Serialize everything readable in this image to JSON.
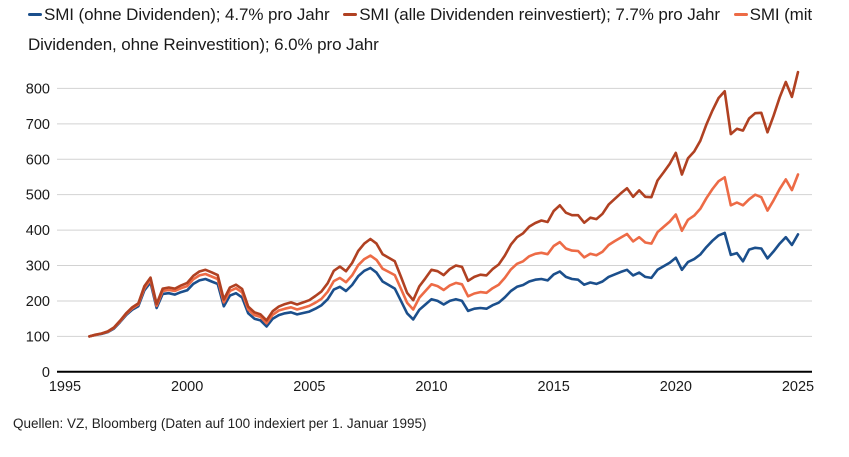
{
  "chart_data": {
    "type": "line",
    "title": "",
    "xlabel": "",
    "ylabel": "",
    "xlim": [
      1995,
      2025
    ],
    "ylim": [
      0,
      800
    ],
    "x_ticks": [
      1995,
      2000,
      2005,
      2010,
      2015,
      2020,
      2025
    ],
    "y_ticks": [
      0,
      100,
      200,
      300,
      400,
      500,
      600,
      700,
      800
    ],
    "grid": "horizontal",
    "legend_position": "top",
    "x_start": 1996.0,
    "x_step": 0.25,
    "series": [
      {
        "name": "SMI (ohne Dividenden); 4.7% pro Jahr",
        "color": "#1b4f8c",
        "values": [
          100,
          104,
          107,
          112,
          122,
          140,
          160,
          175,
          185,
          230,
          252,
          180,
          220,
          222,
          218,
          225,
          230,
          248,
          258,
          262,
          255,
          248,
          185,
          215,
          222,
          210,
          165,
          150,
          145,
          128,
          150,
          160,
          165,
          168,
          162,
          166,
          170,
          178,
          188,
          205,
          232,
          240,
          228,
          245,
          270,
          285,
          293,
          280,
          255,
          245,
          235,
          200,
          165,
          148,
          175,
          190,
          205,
          200,
          190,
          200,
          205,
          200,
          172,
          178,
          180,
          178,
          188,
          195,
          210,
          228,
          240,
          245,
          255,
          260,
          262,
          258,
          275,
          283,
          268,
          262,
          260,
          246,
          252,
          248,
          255,
          268,
          275,
          282,
          288,
          272,
          280,
          268,
          265,
          288,
          298,
          308,
          322,
          288,
          310,
          318,
          331,
          352,
          370,
          385,
          392,
          330,
          335,
          312,
          345,
          350,
          348,
          320,
          340,
          362,
          380,
          358,
          388
        ]
      },
      {
        "name": "SMI (alle Dividenden reinvestiert); 7.7% pro Jahr",
        "color": "#b04122",
        "values": [
          100,
          105,
          108,
          114,
          125,
          144,
          165,
          182,
          193,
          242,
          266,
          191,
          235,
          238,
          235,
          244,
          251,
          271,
          283,
          288,
          281,
          273,
          204,
          238,
          246,
          234,
          184,
          168,
          162,
          145,
          171,
          184,
          191,
          196,
          190,
          196,
          202,
          214,
          227,
          250,
          285,
          297,
          284,
          307,
          341,
          362,
          375,
          362,
          332,
          322,
          312,
          268,
          223,
          202,
          241,
          264,
          288,
          284,
          273,
          290,
          300,
          296,
          257,
          268,
          274,
          272,
          290,
          303,
          328,
          359,
          380,
          391,
          410,
          420,
          427,
          423,
          454,
          470,
          449,
          442,
          442,
          421,
          435,
          431,
          446,
          472,
          488,
          504,
          518,
          494,
          512,
          494,
          493,
          540,
          563,
          587,
          618,
          557,
          603,
          622,
          652,
          698,
          738,
          773,
          792,
          671,
          686,
          681,
          715,
          730,
          731,
          676,
          723,
          775,
          818,
          776,
          846
        ]
      },
      {
        "name": "SMI (mit Dividenden, ohne Reinvestition); 6.0% pro Jahr",
        "color": "#ed6b46",
        "values": [
          100,
          104,
          108,
          113,
          124,
          142,
          163,
          179,
          190,
          236,
          260,
          186,
          228,
          231,
          228,
          236,
          242,
          261,
          272,
          276,
          269,
          262,
          196,
          228,
          236,
          224,
          176,
          160,
          155,
          137,
          161,
          173,
          178,
          182,
          176,
          181,
          186,
          195,
          206,
          226,
          256,
          265,
          253,
          272,
          301,
          318,
          328,
          316,
          291,
          282,
          273,
          234,
          195,
          176,
          209,
          228,
          247,
          242,
          231,
          244,
          251,
          247,
          213,
          221,
          225,
          223,
          236,
          246,
          265,
          289,
          305,
          312,
          326,
          333,
          336,
          332,
          355,
          366,
          348,
          342,
          341,
          323,
          333,
          329,
          339,
          358,
          369,
          379,
          389,
          368,
          380,
          365,
          362,
          394,
          409,
          424,
          444,
          398,
          429,
          441,
          460,
          490,
          516,
          538,
          549,
          470,
          478,
          470,
          487,
          500,
          493,
          455,
          484,
          516,
          543,
          513,
          557
        ]
      }
    ]
  },
  "footer": {
    "source": "Quellen: VZ, Bloomberg (Daten auf 100 indexiert per 1. Januar 1995)"
  }
}
